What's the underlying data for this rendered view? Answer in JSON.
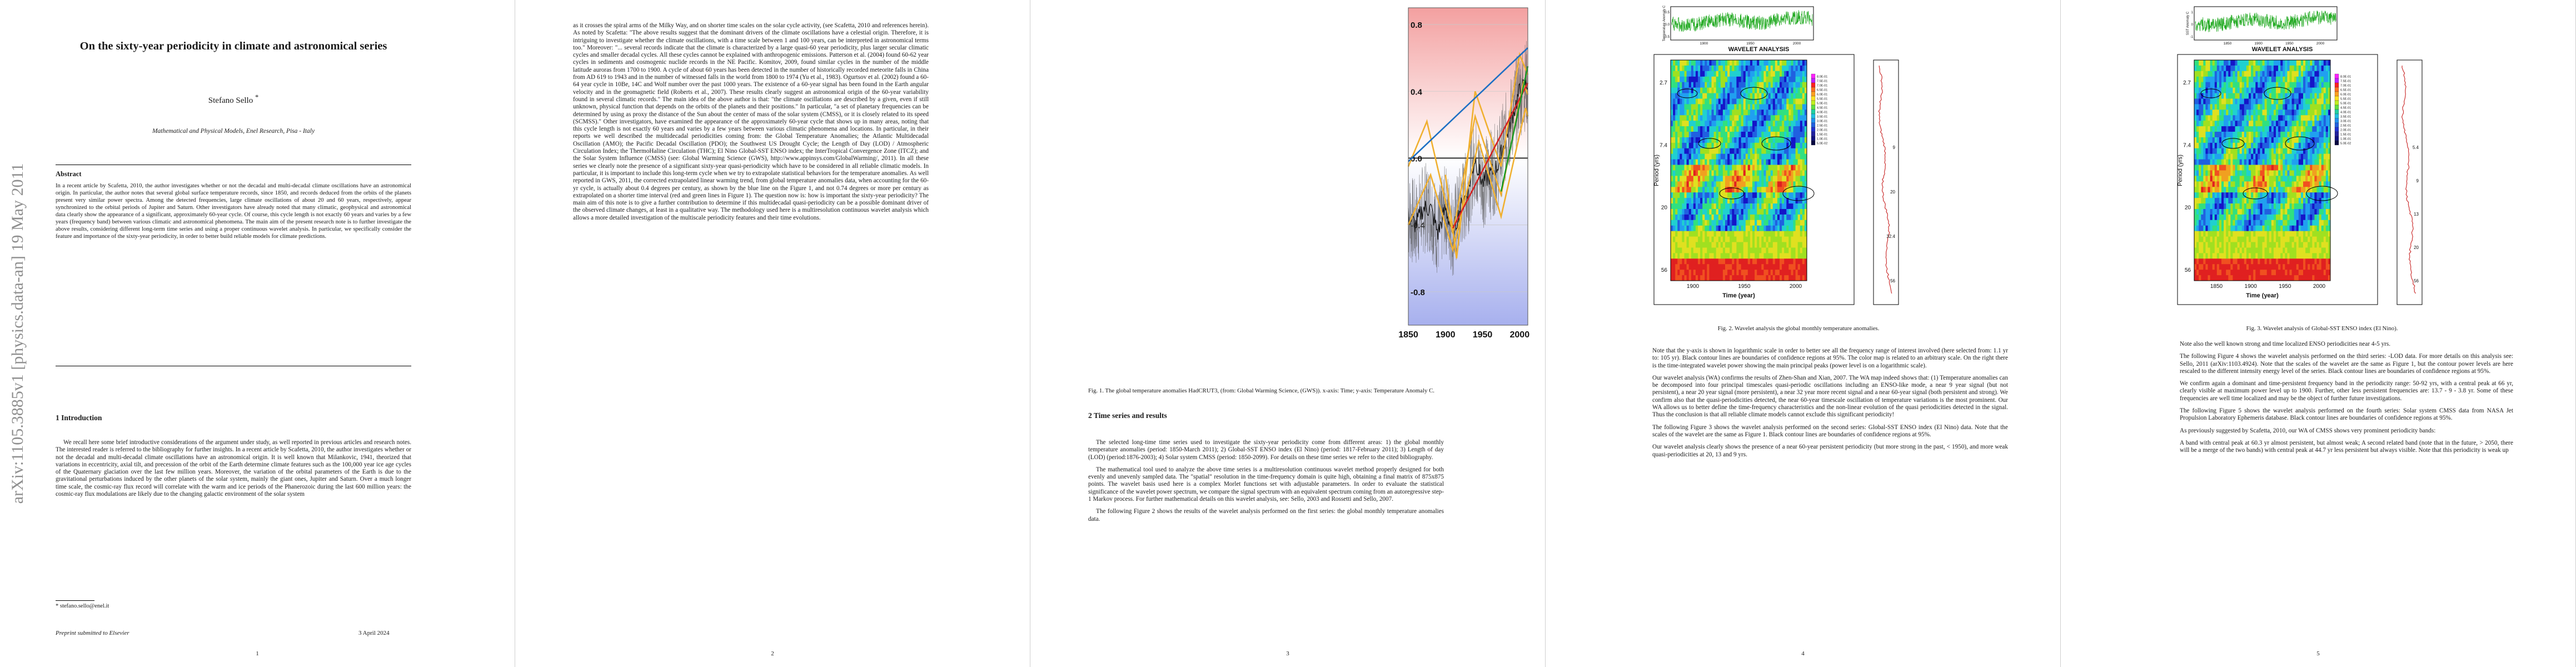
{
  "page1": {
    "arxiv_id": "arXiv:1105.3885v1  [physics.data-an]  19 May 2011",
    "title": "On the sixty-year periodicity in climate and astronomical series",
    "author": "Stefano Sello",
    "author_mark": "*",
    "affiliation": "Mathematical and Physical Models, Enel Research, Pisa - Italy",
    "abstract_heading": "Abstract",
    "abstract": "In a recent article by Scafetta, 2010, the author investigates whether or not the decadal and multi-decadal climate oscillations have an astronomical origin. In particular, the author notes that several global surface temperature records, since 1850, and records deduced from the orbits of the planets present very similar power spectra. Among the detected frequencies, large climate oscillations of about 20 and 60 years, respectively, appear synchronized to the orbital periods of Jupiter and Saturn. Other investigators have already noted that many climatic, geophysical and astronomical data clearly show the appearance of a significant, approximately 60-year cycle. Of course, this cycle length is not exactly 60 years and varies by a few years (frequency band) between various climatic and astronomical phenomena. The main aim of the present research note is to further investigate the above results, considering different long-term time series and using a proper continuous wavelet analysis. In particular, we specifically consider the feature and importance of the sixty-year periodicity, in order to better build reliable models for climate predictions.",
    "intro_heading": "1   Introduction",
    "intro": "We recall here some brief introductive considerations of the argument under study, as well reported in previous articles and research notes. The interested reader is referred to the bibliography for further insights. In a recent article by Scafetta, 2010, the author investigates whether or not the decadal and multi-decadal climate oscillations have an astronomical origin. It is well known that Milankovic, 1941, theorized that variations in eccentricity, axial tilt, and precession of the orbit of the Earth determine climate features such as the 100,000 year ice age cycles of the Quaternary glaciation over the last few million years. Moreover, the variation of the orbital parameters of the Earth is due to the gravitational perturbations induced by the other planets of the solar system, mainly the giant ones, Jupiter and Saturn. Over a much longer time scale, the cosmic-ray flux record will correlate with the warm and ice periods of the Phanerozoic during the last 600 million years: the cosmic-ray flux modulations are likely due to the changing galactic environment of the solar system",
    "footnote": "* stefano.sello@enel.it",
    "footer_left": "Preprint submitted to Elsevier",
    "footer_right": "3 April 2024",
    "page_number": "1"
  },
  "page2": {
    "paragraphs": [
      "as it crosses the spiral arms of the Milky Way, and on shorter time scales on the solar cycle activity, (see Scafetta, 2010 and references herein). As noted by Scafetta: \"The above results suggest that the dominant drivers of the climate oscillations have a celestial origin. Therefore, it is intriguing to investigate whether the climate oscillations, with a time scale between 1 and 100 years, can be interpreted in astronomical terms too.\" Moreover: \"... several records indicate that the climate is characterized by a large quasi-60 year periodicity, plus larger secular climatic cycles and smaller decadal cycles. All these cycles cannot be explained with anthropogenic emissions. Patterson et al. (2004) found 60-62 year cycles in sediments and cosmogenic nuclide records in the NE Pacific. Komitov, 2009, found similar cycles in the number of the middle latitude auroras from 1700 to 1900. A cycle of about 60 years has been detected in the number of historically recorded meteorite falls in China from AD 619 to 1943 and in the number of witnessed falls in the world from 1800 to 1974 (Yu et al., 1983). Ogurtsov et al. (2002) found a 60-64 year cycle in 10Be, 14C and Wolf number over the past 1000 years. The existence of a 60-year signal has been found in the Earth angular velocity and in the geomagnetic field (Roberts et al., 2007). These results clearly suggest an astronomical origin of the 60-year variability found in several climatic records.\" The main idea of the above author is that: \"the climate oscillations are described by a given, even if still unknown, physical function that depends on the orbits of the planets and their positions.\" In particular, \"a set of planetary frequencies can be determined by using as proxy the distance of the Sun about the center of mass of the solar system (CMSS), or it is closely related to its speed (SCMSS).\" Other investigators, have examined the appearance of the approximately 60-year cycle that shows up in many areas, noting that this cycle length is not exactly 60 years and varies by a few years between various climatic phenomena and locations. In particular, in their reports we well described the multidecadal periodicities coming from: the Global Temperature Anomalies; the Atlantic Multidecadal Oscillation (AMO); the Pacific Decadal Oscillation (PDO); the Southwest US Drought Cycle; the Length of Day (LOD) / Atmospheric Circulation Index; the ThermoHaline Circulation (THC); El Nino Global-SST ENSO index; the InterTropical Convergence Zone (ITCZ); and the Solar System Influence (CMSS) (see: Global Warming Science (GWS), http://www.appinsys.com/GlobalWarming/, 2011). In all these series we clearly note the presence of a significant sixty-year quasi-periodicity which have to be considered in all reliable climatic models. In particular, it is important to include this long-term cycle when we try to extrapolate statistical behaviors for the temperature anomalies. As well reported in GWS, 2011, the corrected extrapolated linear warming trend, from global temperature anomalies data, when accounting for the 60-yr cycle, is actually about 0.4 degrees per century, as shown by the blue line on the Figure 1, and not 0.74 degrees or more per century as extrapolated on a shorter time interval (red and green lines in Figure 1). The question now is: how is important the sixty-year periodicity? The main aim of this note is to give a further contribution to determine if this multidecadal quasi-periodicity can be a possible dominant driver of the observed climate changes, at least in a qualitative way. The methodology used here is a multiresolution continuous wavelet analysis which allows a more detailed investigation of the multiscale periodicity features and their time evolutions."
    ],
    "page_number": "2"
  },
  "page3": {
    "caption": "Fig. 1. The global temperature anomalies HadCRUT3, (from: Global Warming Science, (GWS)). x-axis: Time; y-axis: Temperature Anomaly C.",
    "section_heading": "2   Time series and results",
    "paragraphs": [
      "The selected long-time time series used to investigate the sixty-year periodicity come from different areas: 1) the global monthly temperature anomalies (period: 1850-March 2011); 2) Global-SST ENSO index (El Nino) (period: 1817-February 2011); 3) Length of day (LOD) (period:1876-2003); 4) Solar system CMSS (period: 1850-2099). For details on these time series we refer to the cited bibliography.",
      "The mathematical tool used to analyze the above time series is a multiresolution continuous wavelet method properly designed for both evenly and unevenly sampled data. The \"spatial\" resolution in the time-frequency domain is quite high, obtaining a final matrix of 875x875 points. The wavelet basis used here is a complex Morlet functions set with adjustable parameters. In order to evaluate the statistical significance of the wavelet power spectrum, we compare the signal spectrum with an equivalent spectrum coming from an autoregressive step-1 Markov process. For further mathematical details on this wavelet analysis, see: Sello, 2003 and Rossetti and Sello, 2007.",
      "The following Figure 2 shows the results of the wavelet analysis performed on the first series: the global monthly temperature anomalies data."
    ],
    "page_number": "3"
  },
  "page4": {
    "caption": "Fig. 2. Wavelet analysis the global monthly temperature anomalies.",
    "paragraphs": [
      "Note that the y-axis is shown in logarithmic scale in order to better see all the frequency range of interest involved (here selected from: 1.1 yr to: 105 yr). Black contour lines are boundaries of confidence regions at 95%. The color map is related to an arbitrary scale. On the right there is the time-integrated wavelet power showing the main principal peaks (power level is on a logarithmic scale).",
      "Our wavelet analysis (WA) confirms the results of Zhen-Shan and Xian, 2007. The WA map indeed shows that: (1) Temperature anomalies can be decomposed into four principal timescales quasi-periodic oscillations including an ENSO-like mode, a near 9 year signal (but not persistent), a near 20 year signal (more persistent), a near 32 year more recent signal and a near 60-year signal (both persistent and strong). We confirm also that the quasi-periodicities detected, the near 60-year timescale oscillation of temperature variations is the most prominent. Our WA allows us to better define the time-frequency characteristics and the non-linear evolution of the quasi periodicities detected in the signal. Thus the conclusion is that all reliable climate models cannot exclude this significant periodicity!",
      "The following Figure 3 shows the wavelet analysis performed on the second series: Global-SST ENSO index (El Nino) data. Note that the scales of the wavelet are the same as Figure 1. Black contour lines are boundaries of confidence regions at 95%.",
      "Our wavelet analysis clearly shows the presence of a near 60-year persistent periodicity (but more strong in the past, < 1950), and more weak quasi-periodicities at 20, 13 and 9 yrs."
    ],
    "fig": {
      "top_ylabel": "Temperature Anomaly C",
      "top_yticks": [
        "0.5",
        "0.0",
        "-0.5"
      ],
      "top_xticks": [
        "1900",
        "1950",
        "2000"
      ],
      "panel_title": "WAVELET ANALYSIS",
      "ylabel": "Period (yrs)",
      "yticks": [
        "2.7",
        "7.4",
        "20",
        "56"
      ],
      "xlabel": "Time (year)",
      "xticks": [
        "1900",
        "1950",
        "2000"
      ],
      "colorbar": [
        "8.0E-01",
        "7.5E-01",
        "7.0E-01",
        "6.5E-01",
        "6.0E-01",
        "5.5E-01",
        "5.0E-01",
        "4.5E-01",
        "4.0E-01",
        "3.5E-01",
        "3.0E-01",
        "2.5E-01",
        "2.0E-01",
        "1.5E-01",
        "1.0E-01",
        "5.0E-02"
      ],
      "peaks": [
        "9",
        "20",
        "32.4",
        "56"
      ]
    },
    "page_number": "4"
  },
  "page5": {
    "caption": "Fig. 3. Wavelet analysis of Global-SST ENSO index (El Nino).",
    "paragraphs": [
      "Note also the well known strong and time localized ENSO periodicities near 4-5 yrs.",
      "The following Figure 4 shows the wavelet analysis performed on the third series: -LOD data. For more details on this analysis see: Sello, 2011 (arXiv:1103.4924). Note that the scales of the wavelet are the same as Figure 1, but the contour power levels are here rescaled to the different intensity energy level of the series. Black contour lines are boundaries of confidence regions at 95%.",
      "We confirm again a dominant and time-persistent frequency band in the periodicity range: 50-92 yrs, with a central peak at 66 yr, clearly visible at maximum power level up to 1900. Further, other less persistent frequencies are: 13.7 - 9 - 3.8 yr. Some of these frequencies are well time localized and may be the object of further future investigations.",
      "The following Figure 5 shows the wavelet analysis performed on the fourth series: Solar system CMSS data from NASA Jet Propulsion Laboratory Ephemeris database. Black contour lines are boundaries of confidence regions at 95%.",
      "As previously suggested by Scafetta, 2010, our WA of CMSS shows very prominent periodicity bands:",
      "A band with central peak at 60.3 yr almost persistent, but almost weak; A second related band (note that in the future, > 2050, there will be a merge of the two bands) with central peak at 44.7 yr less persistent but always visible. Note that this periodicity is weak up"
    ],
    "fig": {
      "top_ylabel": "SST Anomaly C",
      "top_yticks": [
        "1",
        "0",
        "-1"
      ],
      "top_xticks": [
        "1850",
        "1900",
        "1950",
        "2000"
      ],
      "panel_title": "WAVELET ANALYSIS",
      "ylabel": "Period (yrs)",
      "yticks": [
        "2.7",
        "7.4",
        "20",
        "56"
      ],
      "xlabel": "Time (year)",
      "xticks": [
        "1850",
        "1900",
        "1950",
        "2000"
      ],
      "colorbar": [
        "8.0E-01",
        "7.5E-01",
        "7.0E-01",
        "6.5E-01",
        "6.0E-01",
        "5.5E-01",
        "5.0E-01",
        "4.5E-01",
        "4.0E-01",
        "3.5E-01",
        "3.0E-01",
        "2.5E-01",
        "2.0E-01",
        "1.5E-01",
        "1.0E-01",
        "5.0E-02"
      ],
      "peaks": [
        "5.4",
        "9",
        "13",
        "20",
        "56"
      ]
    },
    "page_number": "5"
  },
  "chart_data": {
    "type": "line",
    "xlim": [
      1850,
      2011
    ],
    "ylim": [
      -1.0,
      0.9
    ],
    "xticks": [
      "1850",
      "1900",
      "1950",
      "2000"
    ],
    "yticks": [
      "0.8",
      "0.4",
      "0.0",
      "-0.4",
      "-0.8"
    ],
    "background": {
      "positive": "#f5a8a8",
      "negative": "#aab2ee"
    },
    "trend_lines": [
      {
        "color": "#1c6fc4",
        "x": [
          1850,
          2011
        ],
        "y": [
          -0.02,
          0.66
        ]
      },
      {
        "color": "#d42222",
        "x": [
          1910,
          2011
        ],
        "y": [
          -0.42,
          0.45
        ]
      },
      {
        "color": "#1a9a2a",
        "x": [
          1975,
          2011
        ],
        "y": [
          -0.2,
          0.55
        ]
      }
    ],
    "cycle_lines": [
      {
        "color": "#f0b030",
        "x": [
          1850,
          1875,
          1910,
          1940,
          1975,
          2005,
          2011
        ],
        "y": [
          -0.05,
          0.22,
          -0.45,
          0.25,
          -0.22,
          0.45,
          0.38
        ]
      },
      {
        "color": "#f0b030",
        "x": [
          1850,
          1880,
          1910,
          1945,
          1975,
          2008,
          2011
        ],
        "y": [
          -0.4,
          -0.1,
          -0.55,
          0.1,
          -0.35,
          0.3,
          0.25
        ]
      },
      {
        "color": "#f0b030",
        "x": [
          1900,
          1915,
          1940,
          1975,
          2000,
          2011
        ],
        "y": [
          -0.1,
          -0.6,
          0.4,
          -0.05,
          0.62,
          0.5
        ]
      }
    ],
    "anomaly_summary": {
      "x": [
        1850,
        1860,
        1870,
        1880,
        1890,
        1900,
        1910,
        1920,
        1930,
        1940,
        1950,
        1960,
        1970,
        1980,
        1990,
        2000,
        2011
      ],
      "y": [
        -0.35,
        -0.4,
        -0.3,
        -0.3,
        -0.45,
        -0.3,
        -0.45,
        -0.3,
        -0.2,
        0.0,
        -0.15,
        -0.1,
        -0.05,
        0.1,
        0.25,
        0.4,
        0.45
      ]
    }
  }
}
